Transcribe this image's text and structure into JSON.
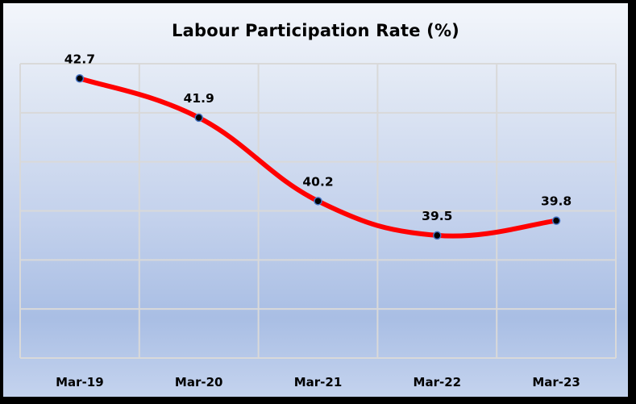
{
  "chart_data": {
    "type": "line",
    "title": "Labour Participation Rate (%)",
    "categories": [
      "Mar-19",
      "Mar-20",
      "Mar-21",
      "Mar-22",
      "Mar-23"
    ],
    "series": [
      {
        "name": "Labour Participation Rate (%)",
        "values": [
          42.7,
          41.9,
          40.2,
          39.5,
          39.8
        ],
        "color": "#ff0000"
      }
    ],
    "xlabel": "",
    "ylabel": "",
    "ylim": [
      37,
      43
    ],
    "y_gridlines": [
      37,
      38,
      39,
      40,
      41,
      42,
      43
    ],
    "grid": true,
    "y_axis_labels_visible": false,
    "data_labels": [
      "42.7",
      "41.9",
      "40.2",
      "39.5",
      "39.8"
    ],
    "smoothed": true,
    "marker_color": "#000000",
    "marker_edge_color": "#4472c4"
  }
}
